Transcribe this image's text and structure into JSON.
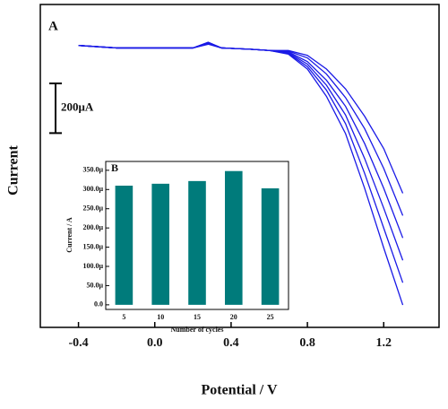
{
  "chart_data": [
    {
      "type": "line",
      "panel": "A",
      "xlabel": "Potential / V",
      "ylabel": "Current",
      "xlim": [
        -0.6,
        1.49
      ],
      "ylim": [
        0,
        1300
      ],
      "xticks": [
        -0.4,
        {
          "value": 0,
          "label": "0.0"
        },
        0.4,
        0.8,
        1.2
      ],
      "scale_bar": {
        "value": 200,
        "label": "200μA"
      },
      "x": [
        -0.4,
        -0.2,
        0,
        0.2,
        0.28,
        0.35,
        0.5,
        0.6,
        0.7,
        0.8,
        0.9,
        1.0,
        1.1,
        1.2,
        1.3
      ],
      "series": [
        {
          "color": "#1a1ae6",
          "values": [
            1135,
            1125,
            1125,
            1125,
            1140,
            1125,
            1120,
            1115,
            1100,
            1040,
            930,
            780,
            560,
            320,
            90
          ]
        },
        {
          "color": "#1a1ae6",
          "values": [
            1135,
            1125,
            1125,
            1125,
            1142,
            1125,
            1120,
            1115,
            1103,
            1050,
            955,
            820,
            620,
            400,
            180
          ]
        },
        {
          "color": "#1a1ae6",
          "values": [
            1135,
            1125,
            1125,
            1125,
            1144,
            1125,
            1120,
            1115,
            1106,
            1060,
            975,
            855,
            680,
            480,
            270
          ]
        },
        {
          "color": "#1a1ae6",
          "values": [
            1135,
            1125,
            1125,
            1125,
            1146,
            1125,
            1120,
            1115,
            1109,
            1070,
            995,
            890,
            740,
            560,
            360
          ]
        },
        {
          "color": "#1a1ae6",
          "values": [
            1135,
            1125,
            1125,
            1125,
            1147,
            1125,
            1120,
            1115,
            1112,
            1085,
            1020,
            925,
            800,
            640,
            450
          ]
        },
        {
          "color": "#1a1ae6",
          "values": [
            1135,
            1125,
            1125,
            1125,
            1148,
            1125,
            1120,
            1115,
            1115,
            1095,
            1040,
            960,
            850,
            720,
            540
          ]
        }
      ]
    },
    {
      "type": "bar",
      "panel": "B",
      "xlabel": "Number of cycles",
      "ylabel": "Current / A",
      "categories": [
        "5",
        "10",
        "15",
        "20",
        "25"
      ],
      "values": [
        310,
        315,
        322,
        348,
        303
      ],
      "color": "#007b7b",
      "ylim": [
        -12,
        373
      ],
      "yticks": [
        {
          "value": 0,
          "label": "0.0"
        },
        {
          "value": 50,
          "label": "50.0μ"
        },
        {
          "value": 100,
          "label": "100.0μ"
        },
        {
          "value": 150,
          "label": "150.0μ"
        },
        {
          "value": 200,
          "label": "200.0μ"
        },
        {
          "value": 250,
          "label": "250.0μ"
        },
        {
          "value": 300,
          "label": "300.0μ"
        },
        {
          "value": 350,
          "label": "350.0μ"
        }
      ]
    }
  ]
}
